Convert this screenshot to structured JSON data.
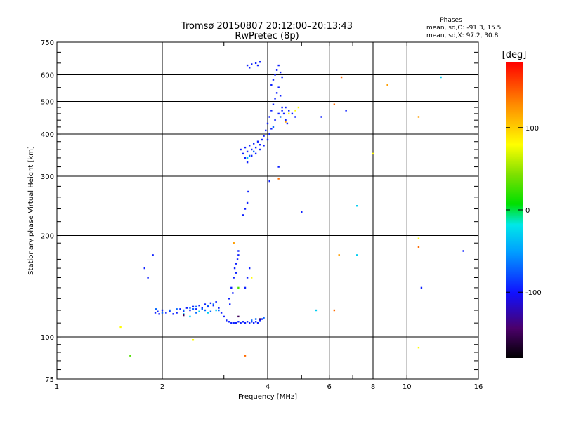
{
  "chart_data": {
    "type": "scatter",
    "title": "Tromsø 20150807 20:12:00–20:13:43",
    "subtitle": "RwPretec (8p)",
    "xlabel": "Frequency [MHz]",
    "ylabel": "Stationary phase Virtual Height [km]",
    "x_scale": "log",
    "y_scale": "log",
    "xlim": [
      1,
      16
    ],
    "ylim": [
      75,
      750
    ],
    "x_ticks": [
      1,
      2,
      4,
      6,
      8,
      10,
      16
    ],
    "x_tick_labels": [
      "1",
      "2",
      "4",
      "6",
      "8",
      "10",
      "16"
    ],
    "y_ticks": [
      75,
      100,
      200,
      300,
      400,
      500,
      600,
      750
    ],
    "y_tick_labels": [
      "75",
      "100",
      "200",
      "300",
      "400",
      "500",
      "600",
      "750"
    ],
    "grid": true,
    "phases_box": {
      "heading": "Phases",
      "line1": "mean, sd,O: -91.3, 15.5",
      "line2": "mean, sd,X:  97.2, 30.8"
    },
    "colorbar": {
      "unit_label": "[deg]",
      "range": [
        -180,
        180
      ],
      "ticks": [
        100,
        0,
        -100
      ],
      "tick_labels": [
        "100",
        "0",
        "-100"
      ]
    },
    "series": [
      {
        "phase_deg": -95,
        "points": [
          [
            1.91,
            118
          ],
          [
            1.94,
            119
          ],
          [
            1.96,
            117
          ],
          [
            2.0,
            120
          ],
          [
            2.05,
            118
          ],
          [
            2.1,
            119
          ],
          [
            2.15,
            117
          ],
          [
            2.2,
            118
          ],
          [
            2.25,
            121
          ],
          [
            2.3,
            119
          ],
          [
            2.35,
            122
          ],
          [
            2.4,
            120
          ],
          [
            2.45,
            123
          ],
          [
            2.5,
            121
          ],
          [
            2.55,
            124
          ],
          [
            2.6,
            122
          ],
          [
            2.65,
            125
          ],
          [
            2.7,
            123
          ],
          [
            2.75,
            126
          ],
          [
            2.8,
            124
          ],
          [
            2.85,
            127
          ],
          [
            2.9,
            122
          ],
          [
            2.95,
            118
          ],
          [
            3.0,
            115
          ],
          [
            3.05,
            112
          ],
          [
            3.1,
            111
          ],
          [
            3.15,
            110
          ],
          [
            3.2,
            110
          ],
          [
            3.25,
            110
          ],
          [
            3.3,
            111
          ],
          [
            3.35,
            110
          ],
          [
            3.4,
            111
          ],
          [
            3.45,
            110
          ],
          [
            3.5,
            111
          ],
          [
            3.55,
            110
          ],
          [
            3.6,
            111
          ],
          [
            3.65,
            110
          ],
          [
            3.7,
            111
          ],
          [
            3.75,
            110
          ],
          [
            3.8,
            112
          ],
          [
            3.85,
            113
          ],
          [
            3.1,
            130
          ],
          [
            3.15,
            140
          ],
          [
            3.2,
            150
          ],
          [
            3.22,
            160
          ],
          [
            3.25,
            165
          ],
          [
            3.28,
            170
          ],
          [
            3.3,
            175
          ],
          [
            3.3,
            180
          ],
          [
            3.25,
            155
          ],
          [
            3.18,
            135
          ],
          [
            3.12,
            125
          ],
          [
            3.5,
            150
          ],
          [
            3.55,
            160
          ],
          [
            3.45,
            140
          ],
          [
            1.78,
            160
          ],
          [
            1.82,
            150
          ],
          [
            1.88,
            175
          ],
          [
            3.4,
            230
          ],
          [
            3.45,
            240
          ],
          [
            3.5,
            250
          ],
          [
            3.52,
            270
          ],
          [
            3.35,
            360
          ],
          [
            3.4,
            350
          ],
          [
            3.45,
            365
          ],
          [
            3.5,
            355
          ],
          [
            3.55,
            370
          ],
          [
            3.6,
            360
          ],
          [
            3.65,
            375
          ],
          [
            3.7,
            365
          ],
          [
            3.75,
            380
          ],
          [
            3.8,
            372
          ],
          [
            3.85,
            385
          ],
          [
            3.9,
            395
          ],
          [
            3.95,
            410
          ],
          [
            4.0,
            430
          ],
          [
            4.05,
            450
          ],
          [
            4.1,
            470
          ],
          [
            4.15,
            490
          ],
          [
            4.2,
            510
          ],
          [
            4.25,
            530
          ],
          [
            4.3,
            550
          ],
          [
            4.35,
            520
          ],
          [
            4.4,
            480
          ],
          [
            4.45,
            460
          ],
          [
            4.5,
            440
          ],
          [
            4.55,
            430
          ],
          [
            4.1,
            560
          ],
          [
            4.15,
            580
          ],
          [
            4.2,
            600
          ],
          [
            4.25,
            620
          ],
          [
            4.3,
            640
          ],
          [
            4.35,
            610
          ],
          [
            4.4,
            590
          ],
          [
            3.45,
            340
          ],
          [
            3.5,
            330
          ],
          [
            3.6,
            345
          ],
          [
            3.7,
            350
          ],
          [
            3.8,
            360
          ],
          [
            3.9,
            370
          ],
          [
            4.0,
            385
          ],
          [
            4.05,
            400
          ],
          [
            4.1,
            415
          ],
          [
            4.2,
            440
          ],
          [
            4.3,
            460
          ],
          [
            4.4,
            470
          ],
          [
            4.5,
            480
          ],
          [
            4.6,
            470
          ],
          [
            4.7,
            460
          ],
          [
            4.8,
            450
          ],
          [
            3.5,
            640
          ],
          [
            3.6,
            645
          ],
          [
            3.7,
            650
          ],
          [
            3.8,
            655
          ],
          [
            3.55,
            630
          ],
          [
            3.75,
            640
          ],
          [
            4.3,
            320
          ],
          [
            5.7,
            450
          ],
          [
            6.7,
            470
          ],
          [
            5.0,
            235
          ],
          [
            4.05,
            290
          ],
          [
            14.5,
            180
          ],
          [
            11.0,
            140
          ]
        ]
      },
      {
        "phase_deg": -70,
        "points": [
          [
            1.92,
            121
          ],
          [
            2.0,
            118
          ],
          [
            2.1,
            120
          ],
          [
            2.2,
            121
          ],
          [
            2.3,
            120
          ],
          [
            2.4,
            122
          ],
          [
            2.5,
            123
          ],
          [
            2.6,
            121
          ],
          [
            2.7,
            124
          ],
          [
            2.8,
            125
          ],
          [
            2.9,
            120
          ],
          [
            3.6,
            112
          ],
          [
            3.7,
            113
          ],
          [
            3.9,
            114
          ],
          [
            2.5,
            118
          ],
          [
            2.45,
            121
          ],
          [
            2.65,
            120
          ],
          [
            2.75,
            119
          ],
          [
            3.55,
            345
          ],
          [
            3.65,
            355
          ],
          [
            4.15,
            420
          ],
          [
            4.35,
            450
          ]
        ]
      },
      {
        "phase_deg": -30,
        "points": [
          [
            2.4,
            115
          ],
          [
            2.3,
            117
          ],
          [
            2.55,
            119
          ],
          [
            2.7,
            118
          ],
          [
            2.85,
            120
          ],
          [
            3.5,
            340
          ],
          [
            5.5,
            120
          ],
          [
            7.2,
            175
          ],
          [
            7.2,
            245
          ],
          [
            12.5,
            590
          ]
        ]
      },
      {
        "phase_deg": 80,
        "points": [
          [
            1.52,
            107
          ],
          [
            2.45,
            98
          ],
          [
            3.6,
            150
          ],
          [
            4.6,
            460
          ],
          [
            4.8,
            470
          ],
          [
            4.9,
            480
          ],
          [
            8.0,
            350
          ],
          [
            10.8,
            196
          ],
          [
            10.8,
            93
          ]
        ]
      },
      {
        "phase_deg": 120,
        "points": [
          [
            3.2,
            190
          ],
          [
            4.5,
            435
          ],
          [
            6.4,
            175
          ],
          [
            8.8,
            560
          ],
          [
            10.8,
            450
          ]
        ]
      },
      {
        "phase_deg": 140,
        "points": [
          [
            3.45,
            88
          ],
          [
            4.3,
            295
          ],
          [
            6.2,
            490
          ],
          [
            6.5,
            590
          ],
          [
            6.2,
            120
          ],
          [
            10.8,
            185
          ]
        ]
      },
      {
        "phase_deg": 30,
        "points": [
          [
            1.62,
            88
          ],
          [
            3.3,
            140
          ]
        ]
      },
      {
        "phase_deg": -150,
        "points": [
          [
            3.3,
            115
          ],
          [
            3.8,
            113
          ],
          [
            2.3,
            116
          ]
        ]
      }
    ]
  }
}
